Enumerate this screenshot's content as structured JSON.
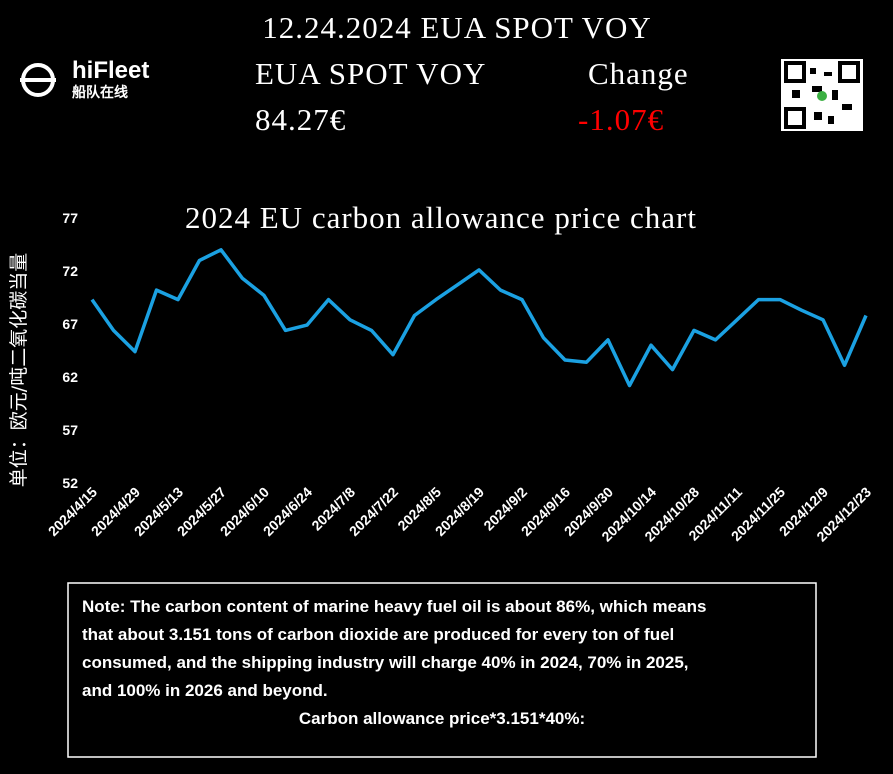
{
  "logo": {
    "name": "hiFleet",
    "subtitle": "船队在线"
  },
  "header": {
    "title": "12.24.2024 EUA SPOT VOY",
    "price_label": "EUA SPOT VOY",
    "change_label": "Change",
    "price": "84.27€",
    "change": "-1.07€"
  },
  "chart_data": {
    "type": "line",
    "title": "2024 EU carbon allowance price chart",
    "y_label": "单位：欧元/吨二氧化碳当量",
    "x": [
      "2024/4/15",
      "2024/4/22",
      "2024/4/29",
      "2024/5/6",
      "2024/5/13",
      "2024/5/20",
      "2024/5/27",
      "2024/6/3",
      "2024/6/10",
      "2024/6/17",
      "2024/6/24",
      "2024/7/1",
      "2024/7/8",
      "2024/7/15",
      "2024/7/22",
      "2024/7/29",
      "2024/8/5",
      "2024/8/12",
      "2024/8/19",
      "2024/8/26",
      "2024/9/2",
      "2024/9/9",
      "2024/9/16",
      "2024/9/23",
      "2024/9/30",
      "2024/10/7",
      "2024/10/14",
      "2024/10/21",
      "2024/10/28",
      "2024/11/4",
      "2024/11/11",
      "2024/11/18",
      "2024/11/25",
      "2024/12/2",
      "2024/12/9",
      "2024/12/16",
      "2024/12/23"
    ],
    "series": [
      {
        "name": "EUA",
        "color": "#1ba1e2",
        "values": [
          69.3,
          66.4,
          64.4,
          70.2,
          69.3,
          73,
          74,
          71.3,
          69.7,
          66.4,
          66.9,
          69.3,
          67.4,
          66.4,
          64.1,
          67.8,
          69.3,
          70.7,
          72.1,
          70.2,
          69.3,
          65.7,
          63.6,
          63.4,
          65.5,
          61.2,
          65,
          62.7,
          66.4,
          65.5,
          67.4,
          69.3,
          69.3,
          68.3,
          67.4,
          63.1,
          67.8
        ]
      }
    ],
    "xlim": [
      "2024/4/15",
      "2024/12/23"
    ],
    "xticks": [
      "2024/4/15",
      "2024/4/29",
      "2024/5/13",
      "2024/5/27",
      "2024/6/10",
      "2024/6/24",
      "2024/7/8",
      "2024/7/22",
      "2024/8/5",
      "2024/8/19",
      "2024/9/2",
      "2024/9/16",
      "2024/9/30",
      "2024/10/14",
      "2024/10/28",
      "2024/11/11",
      "2024/11/25",
      "2024/12/9",
      "2024/12/23"
    ],
    "ylim": [
      52,
      77
    ],
    "yticks": [
      52,
      57,
      62,
      67,
      72,
      77
    ],
    "grid": false
  },
  "note": {
    "lines": [
      "Note: The carbon content of marine heavy fuel oil is about 86%, which means",
      "that about 3.151 tons of carbon dioxide are produced for every ton of fuel",
      "consumed, and the shipping industry will charge 40% in 2024, 70% in 2025,",
      "and 100% in 2026 and beyond."
    ],
    "formula": "Carbon allowance price*3.151*40%:"
  }
}
